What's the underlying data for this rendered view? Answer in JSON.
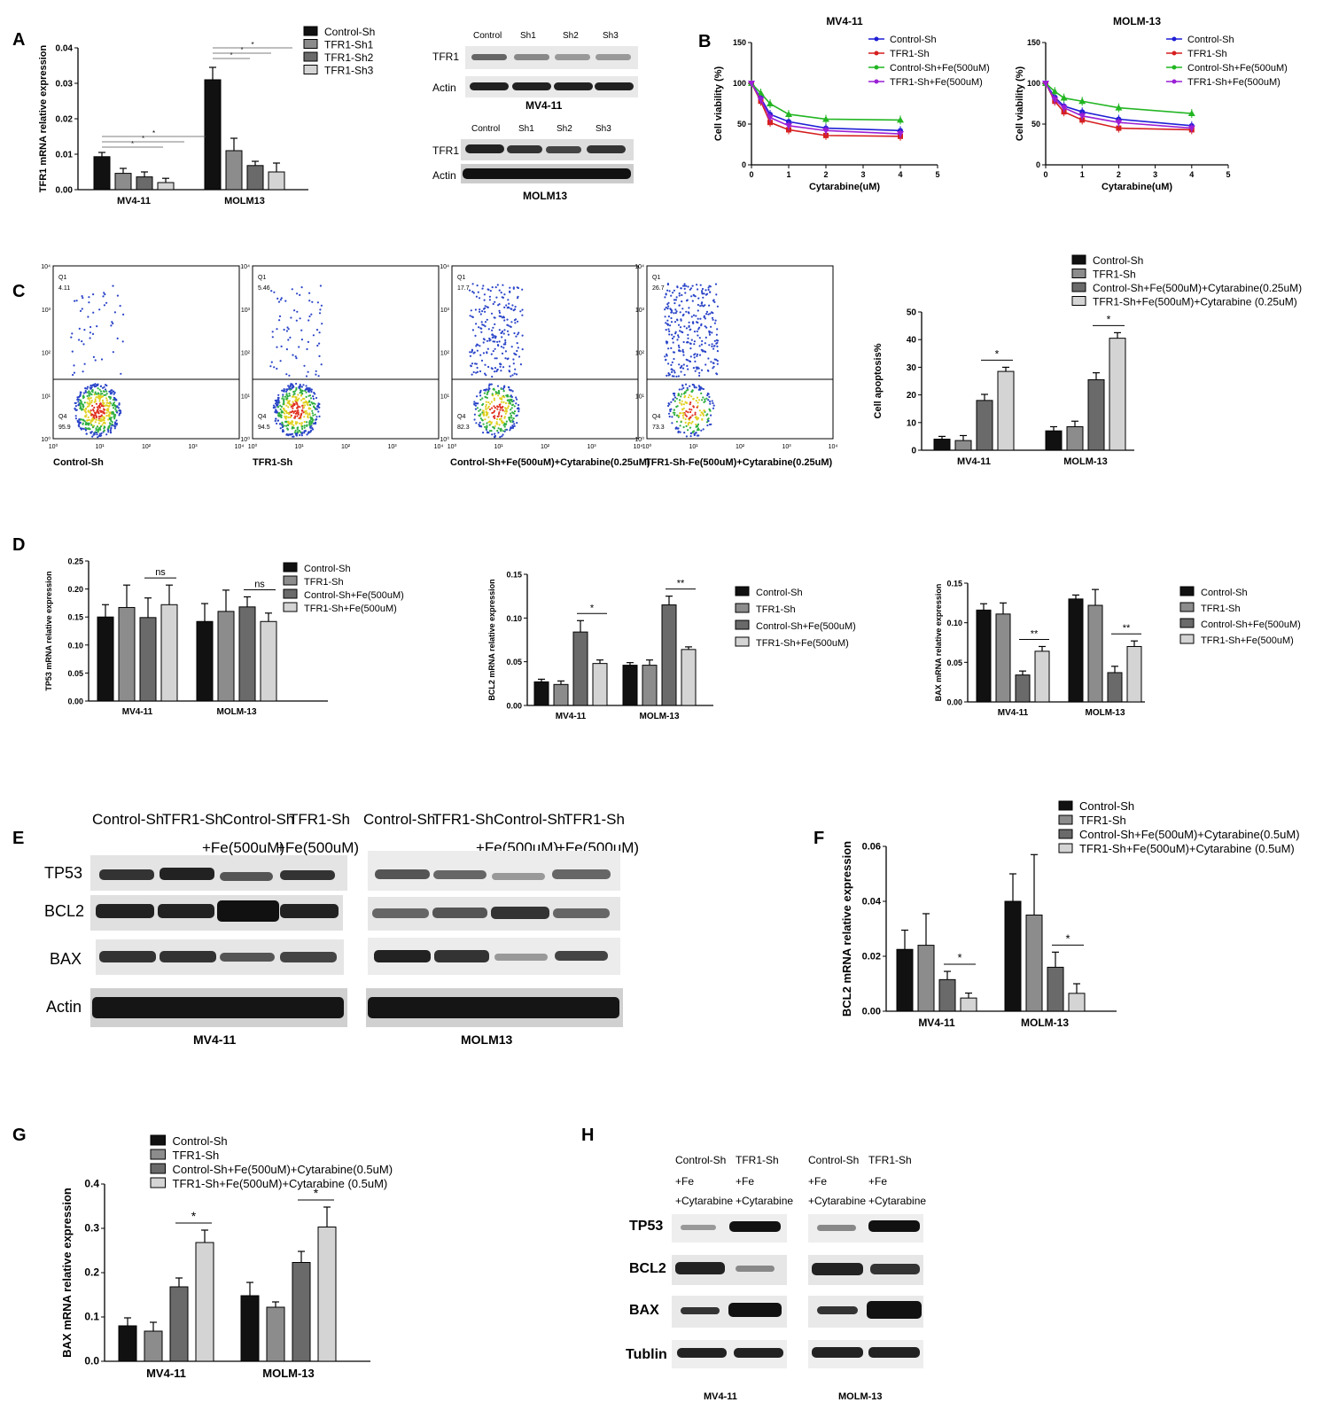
{
  "panel_labels": {
    "A": "A",
    "B": "B",
    "C": "C",
    "D": "D",
    "E": "E",
    "F": "F",
    "G": "G",
    "H": "H"
  },
  "colors": {
    "black": "#111111",
    "gray_mid": "#8c8c8c",
    "gray_dark": "#6a6a6a",
    "gray_light": "#d4d4d4",
    "blue": "#1f1fd6",
    "red": "#d61f1f",
    "green": "#23b623",
    "purple": "#9b1fd6"
  },
  "chart_data": [
    {
      "id": "A",
      "type": "bar",
      "ylabel": "TFR1 mRNA relative expression",
      "categories": [
        "MV4-11",
        "MOLM13"
      ],
      "ylim": [
        0,
        0.04
      ],
      "yticks": [
        "0.00",
        "0.01",
        "0.02",
        "0.03",
        "0.04"
      ],
      "series": [
        {
          "name": "Control-Sh",
          "values": [
            0.0093,
            0.031
          ],
          "err": [
            0.0012,
            0.0035
          ]
        },
        {
          "name": "TFR1-Sh1",
          "values": [
            0.0046,
            0.011
          ],
          "err": [
            0.0014,
            0.0035
          ]
        },
        {
          "name": "TFR1-Sh2",
          "values": [
            0.0036,
            0.0068
          ],
          "err": [
            0.0014,
            0.0012
          ]
        },
        {
          "name": "TFR1-Sh3",
          "values": [
            0.002,
            0.005
          ],
          "err": [
            0.0012,
            0.0025
          ]
        }
      ],
      "sig": [
        "*",
        "*",
        "*",
        "*",
        "*",
        "*"
      ]
    },
    {
      "id": "B1",
      "type": "line",
      "title": "MV4-11",
      "xlabel": "Cytarabine(uM)",
      "ylabel": "Cell viability (%)",
      "xlim": [
        0,
        5
      ],
      "ylim": [
        0,
        150
      ],
      "xticks": [
        "0",
        "1",
        "2",
        "3",
        "4",
        "5"
      ],
      "yticks": [
        "0",
        "50",
        "100",
        "150"
      ],
      "x": [
        0,
        0.25,
        0.5,
        1,
        2,
        4
      ],
      "series": [
        {
          "name": "Control-Sh",
          "values": [
            100,
            82,
            62,
            53,
            45,
            42
          ]
        },
        {
          "name": "TFR1-Sh",
          "values": [
            100,
            78,
            52,
            43,
            36,
            35
          ]
        },
        {
          "name": "Control-Sh+Fe(500uM)",
          "values": [
            100,
            88,
            75,
            62,
            56,
            55
          ]
        },
        {
          "name": "TFR1-Sh+Fe(500uM)",
          "values": [
            100,
            80,
            58,
            48,
            42,
            38
          ]
        }
      ]
    },
    {
      "id": "B2",
      "type": "line",
      "title": "MOLM-13",
      "xlabel": "Cytarabine(uM)",
      "ylabel": "Cell viability (%)",
      "xlim": [
        0,
        5
      ],
      "ylim": [
        0,
        150
      ],
      "xticks": [
        "0",
        "1",
        "2",
        "3",
        "4",
        "5"
      ],
      "yticks": [
        "0",
        "50",
        "100",
        "150"
      ],
      "x": [
        0,
        0.25,
        0.5,
        1,
        2,
        4
      ],
      "series": [
        {
          "name": "Control-Sh",
          "values": [
            100,
            83,
            72,
            65,
            56,
            48
          ]
        },
        {
          "name": "TFR1-Sh",
          "values": [
            100,
            78,
            65,
            55,
            45,
            43
          ]
        },
        {
          "name": "Control-Sh+Fe(500uM)",
          "values": [
            100,
            90,
            82,
            78,
            70,
            63
          ]
        },
        {
          "name": "TFR1-Sh+Fe(500uM)",
          "values": [
            100,
            80,
            70,
            60,
            52,
            45
          ]
        }
      ]
    },
    {
      "id": "C",
      "type": "bar",
      "ylabel": "Cell apoptosis%",
      "categories": [
        "MV4-11",
        "MOLM-13"
      ],
      "ylim": [
        0,
        50
      ],
      "yticks": [
        "0",
        "10",
        "20",
        "30",
        "40",
        "50"
      ],
      "series": [
        {
          "name": "Control-Sh",
          "values": [
            4,
            7
          ],
          "err": [
            1,
            1.5
          ]
        },
        {
          "name": "TFR1-Sh",
          "values": [
            3.5,
            8.5
          ],
          "err": [
            1.8,
            2
          ]
        },
        {
          "name": "Control-Sh+Fe(500uM)+Cytarabine(0.25uM)",
          "values": [
            18,
            25.5
          ],
          "err": [
            2.2,
            2.5
          ]
        },
        {
          "name": "TFR1-Sh+Fe(500uM)+Cytarabine (0.25uM)",
          "values": [
            28.5,
            40.5
          ],
          "err": [
            1.5,
            2
          ]
        }
      ],
      "sig": [
        "*",
        "*"
      ]
    },
    {
      "id": "D1",
      "type": "bar",
      "ylabel": "TP53 mRNA relative expression",
      "categories": [
        "MV4-11",
        "MOLM-13"
      ],
      "ylim": [
        0,
        0.25
      ],
      "yticks": [
        "0.00",
        "0.05",
        "0.10",
        "0.15",
        "0.20",
        "0.25"
      ],
      "series": [
        {
          "name": "Control-Sh",
          "values": [
            0.15,
            0.142
          ],
          "err": [
            0.022,
            0.032
          ]
        },
        {
          "name": "TFR1-Sh",
          "values": [
            0.167,
            0.16
          ],
          "err": [
            0.04,
            0.038
          ]
        },
        {
          "name": "Control-Sh+Fe(500uM)",
          "values": [
            0.149,
            0.168
          ],
          "err": [
            0.035,
            0.018
          ]
        },
        {
          "name": "TFR1-Sh+Fe(500uM)",
          "values": [
            0.172,
            0.142
          ],
          "err": [
            0.035,
            0.015
          ]
        }
      ],
      "sig": [
        "ns",
        "ns"
      ]
    },
    {
      "id": "D2",
      "type": "bar",
      "ylabel": "BCL2 mRNA relative expression",
      "categories": [
        "MV4-11",
        "MOLM-13"
      ],
      "ylim": [
        0,
        0.15
      ],
      "yticks": [
        "0.00",
        "0.05",
        "0.10",
        "0.15"
      ],
      "series": [
        {
          "name": "Control-Sh",
          "values": [
            0.027,
            0.046
          ],
          "err": [
            0.003,
            0.003
          ]
        },
        {
          "name": "TFR1-Sh",
          "values": [
            0.024,
            0.046
          ],
          "err": [
            0.004,
            0.006
          ]
        },
        {
          "name": "Control-Sh+Fe(500uM)",
          "values": [
            0.084,
            0.115
          ],
          "err": [
            0.013,
            0.01
          ]
        },
        {
          "name": "TFR1-Sh+Fe(500uM)",
          "values": [
            0.048,
            0.064
          ],
          "err": [
            0.004,
            0.003
          ]
        }
      ],
      "sig": [
        "*",
        "**"
      ]
    },
    {
      "id": "D3",
      "type": "bar",
      "ylabel": "BAX mRNA relative expression",
      "categories": [
        "MV4-11",
        "MOLM-13"
      ],
      "ylim": [
        0,
        0.15
      ],
      "yticks": [
        "0.00",
        "0.05",
        "0.10",
        "0.15"
      ],
      "series": [
        {
          "name": "Control-Sh",
          "values": [
            0.116,
            0.13
          ],
          "err": [
            0.008,
            0.005
          ]
        },
        {
          "name": "TFR1-Sh",
          "values": [
            0.111,
            0.122
          ],
          "err": [
            0.014,
            0.02
          ]
        },
        {
          "name": "Control-Sh+Fe(500uM)",
          "values": [
            0.034,
            0.037
          ],
          "err": [
            0.005,
            0.008
          ]
        },
        {
          "name": "TFR1-Sh+Fe(500uM)",
          "values": [
            0.064,
            0.07
          ],
          "err": [
            0.006,
            0.007
          ]
        }
      ],
      "sig": [
        "**",
        "**"
      ]
    },
    {
      "id": "F",
      "type": "bar",
      "ylabel": "BCL2 mRNA relative expression",
      "categories": [
        "MV4-11",
        "MOLM-13"
      ],
      "ylim": [
        0,
        0.06
      ],
      "yticks": [
        "0.00",
        "0.02",
        "0.04",
        "0.06"
      ],
      "series": [
        {
          "name": "Control-Sh",
          "values": [
            0.0225,
            0.04
          ],
          "err": [
            0.007,
            0.01
          ]
        },
        {
          "name": "TFR1-Sh",
          "values": [
            0.024,
            0.035
          ],
          "err": [
            0.0115,
            0.022
          ]
        },
        {
          "name": "Control-Sh+Fe(500uM)+Cytarabine(0.5uM)",
          "values": [
            0.0115,
            0.016
          ],
          "err": [
            0.003,
            0.0055
          ]
        },
        {
          "name": "TFR1-Sh+Fe(500uM)+Cytarabine (0.5uM)",
          "values": [
            0.0048,
            0.0065
          ],
          "err": [
            0.0018,
            0.0035
          ]
        }
      ],
      "sig": [
        "*",
        "*"
      ]
    },
    {
      "id": "G",
      "type": "bar",
      "ylabel": "BAX mRNA relative expression",
      "categories": [
        "MV4-11",
        "MOLM-13"
      ],
      "ylim": [
        0,
        0.4
      ],
      "yticks": [
        "0.0",
        "0.1",
        "0.2",
        "0.3",
        "0.4"
      ],
      "series": [
        {
          "name": "Control-Sh",
          "values": [
            0.08,
            0.148
          ],
          "err": [
            0.018,
            0.03
          ]
        },
        {
          "name": "TFR1-Sh",
          "values": [
            0.068,
            0.122
          ],
          "err": [
            0.02,
            0.012
          ]
        },
        {
          "name": "Control-Sh+Fe(500uM)+Cytarabine(0.5uM)",
          "values": [
            0.168,
            0.223
          ],
          "err": [
            0.02,
            0.025
          ]
        },
        {
          "name": "TFR1-Sh+Fe(500uM)+Cytarabine (0.5uM)",
          "values": [
            0.268,
            0.303
          ],
          "err": [
            0.028,
            0.045
          ]
        }
      ],
      "sig": [
        "*",
        "*"
      ]
    }
  ],
  "westerns": {
    "A_top": {
      "lanes": [
        "Control",
        "Sh1",
        "Sh2",
        "Sh3"
      ],
      "rows": [
        "TFR1",
        "Actin"
      ],
      "caption": "MV4-11"
    },
    "A_bottom": {
      "lanes": [
        "Control",
        "Sh1",
        "Sh2",
        "Sh3"
      ],
      "rows": [
        "TFR1",
        "Actin"
      ],
      "caption": "MOLM13"
    },
    "E": {
      "lanes_left_1": [
        "Control-Sh",
        "TFR1-Sh",
        "Control-Sh",
        "TFR1-Sh"
      ],
      "lanes_left_2": [
        "+Fe(500uM)",
        "+Fe(500uM)"
      ],
      "lanes_right_1": [
        "Control-Sh",
        "TFR1-Sh",
        "Control-Sh",
        "TFR1-Sh"
      ],
      "lanes_right_2": [
        "+Fe(500uM)",
        "+Fe(500uM)"
      ],
      "rows": [
        "TP53",
        "BCL2",
        "BAX",
        "Actin"
      ],
      "captions": [
        "MV4-11",
        "MOLM13"
      ]
    },
    "H": {
      "lanes_left": [
        "Control-Sh",
        "TFR1-Sh"
      ],
      "lanes_right": [
        "Control-Sh",
        "TFR1-Sh"
      ],
      "fe": "+Fe",
      "cyt": "+Cytarabine",
      "rows": [
        "TP53",
        "BCL2",
        "BAX",
        "Tublin"
      ],
      "captions": [
        "MV4-11",
        "MOLM-13"
      ]
    }
  },
  "flow": {
    "plots": [
      {
        "caption": "Control-Sh",
        "q1": "4.11",
        "q4": "95.9"
      },
      {
        "caption": "TFR1-Sh",
        "q1": "5.46",
        "q4": "94.5"
      },
      {
        "caption": "Control-Sh+Fe(500uM)+Cytarabine(0.25uM)",
        "q1": "17.7",
        "q4": "82.3"
      },
      {
        "caption": "TFR1-Sh-Fe(500uM)+Cytarabine(0.25uM)",
        "q1": "26.7",
        "q4": "73.3"
      }
    ],
    "q1_label": "Q1",
    "q4_label": "Q4",
    "ticks": [
      "10⁰",
      "10¹",
      "10²",
      "10³",
      "10⁴"
    ]
  }
}
